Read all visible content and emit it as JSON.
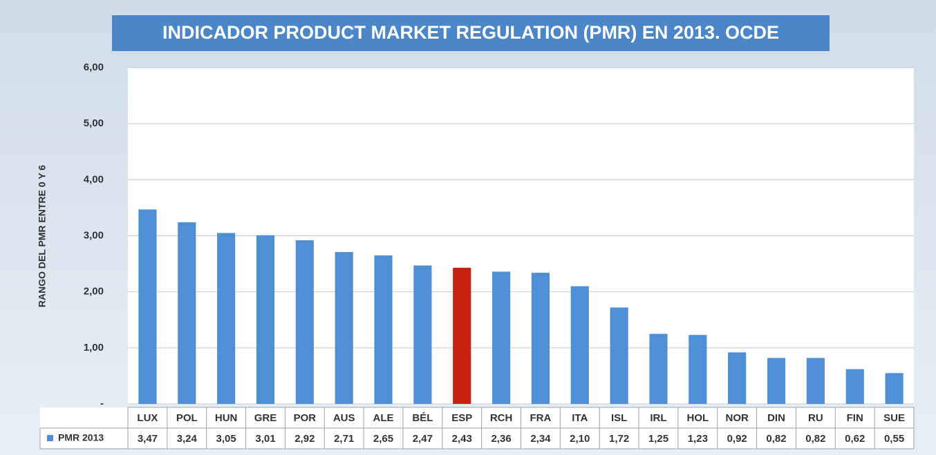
{
  "chart_data": {
    "type": "bar",
    "title": "INDICADOR PRODUCT MARKET REGULATION (PMR) EN 2013. OCDE",
    "y_label": "RANGO DEL PMR ENTRE 0 Y 6",
    "categories": [
      "LUX",
      "POL",
      "HUN",
      "GRE",
      "POR",
      "AUS",
      "ALE",
      "BÉL",
      "ESP",
      "RCH",
      "FRA",
      "ITA",
      "ISL",
      "IRL",
      "HOL",
      "NOR",
      "DIN",
      "RU",
      "FIN",
      "SUE"
    ],
    "series": [
      {
        "name": "PMR 2013",
        "color": "#4f8fd6",
        "colors": [
          "#4f8fd6",
          "#4f8fd6",
          "#4f8fd6",
          "#4f8fd6",
          "#4f8fd6",
          "#4f8fd6",
          "#4f8fd6",
          "#4f8fd6",
          "#c8200e",
          "#4f8fd6",
          "#4f8fd6",
          "#4f8fd6",
          "#4f8fd6",
          "#4f8fd6",
          "#4f8fd6",
          "#4f8fd6",
          "#4f8fd6",
          "#4f8fd6",
          "#4f8fd6",
          "#4f8fd6"
        ],
        "values": [
          3.47,
          3.24,
          3.05,
          3.01,
          2.92,
          2.71,
          2.65,
          2.47,
          2.43,
          2.36,
          2.34,
          2.1,
          1.72,
          1.25,
          1.23,
          0.92,
          0.82,
          0.82,
          0.62,
          0.55
        ],
        "value_labels": [
          "3,47",
          "3,24",
          "3,05",
          "3,01",
          "2,92",
          "2,71",
          "2,65",
          "2,47",
          "2,43",
          "2,36",
          "2,34",
          "2,10",
          "1,72",
          "1,25",
          "1,23",
          "0,92",
          "0,82",
          "0,82",
          "0,62",
          "0,55"
        ]
      }
    ],
    "ylim": [
      0,
      6
    ],
    "yticks": [
      {
        "value": 0,
        "label": "-"
      },
      {
        "value": 1,
        "label": "1,00"
      },
      {
        "value": 2,
        "label": "2,00"
      },
      {
        "value": 3,
        "label": "3,00"
      },
      {
        "value": 4,
        "label": "4,00"
      },
      {
        "value": 5,
        "label": "5,00"
      },
      {
        "value": 6,
        "label": "6,00"
      }
    ],
    "grid": true
  }
}
